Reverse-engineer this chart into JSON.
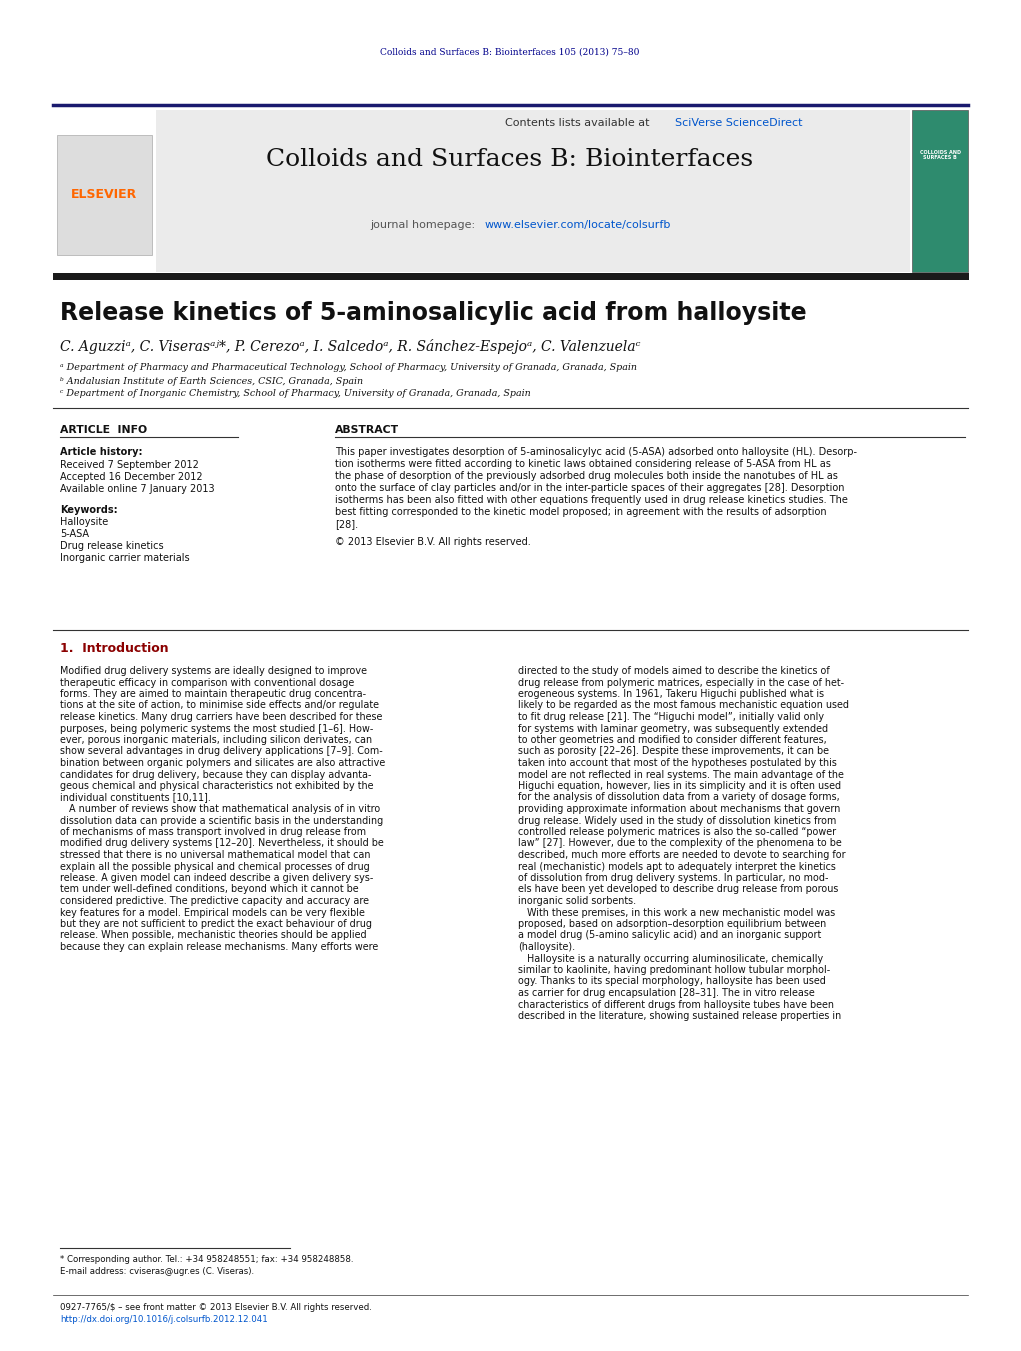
{
  "bg_color": "#ffffff",
  "header_journal_ref": "Colloids and Surfaces B: Biointerfaces 105 (2013) 75–80",
  "header_bg": "#e8e8f0",
  "journal_title": "Colloids and Surfaces B: Biointerfaces",
  "contents_line": "Contents lists available at ",
  "contents_link": "SciVerse ScienceDirect",
  "homepage_prefix": "journal homepage: ",
  "homepage_url": "www.elsevier.com/locate/colsurfb",
  "elsevier_color": "#FF6600",
  "article_title": "Release kinetics of 5-aminosalicylic acid from halloysite",
  "authors": "C. Aguzziᵃ, C. Viserasᵃʲ*, P. Cerezoᵃ, I. Salcedoᵃ, R. Sánchez-Espejoᵃ, C. Valenzuelaᶜ",
  "affil_a": "ᵃ Department of Pharmacy and Pharmaceutical Technology, School of Pharmacy, University of Granada, Granada, Spain",
  "affil_b": "ᵇ Andalusian Institute of Earth Sciences, CSIC, Granada, Spain",
  "affil_c": "ᶜ Department of Inorganic Chemistry, School of Pharmacy, University of Granada, Granada, Spain",
  "article_info_title": "ARTICLE  INFO",
  "abstract_title": "ABSTRACT",
  "article_history_label": "Article history:",
  "received": "Received 7 September 2012",
  "revised": "Accepted 16 December 2012",
  "available": "Available online 7 January 2013",
  "keywords_label": "Keywords:",
  "kw1": "Halloysite",
  "kw2": "5-ASA",
  "kw3": "Drug release kinetics",
  "kw4": "Inorganic carrier materials",
  "copyright_line": "© 2013 Elsevier B.V. All rights reserved.",
  "intro_title": "1.  Introduction",
  "footnote1": "* Corresponding author. Tel.: +34 958248551; fax: +34 958248858.",
  "footnote2": "E-mail address: cviseras@ugr.es (C. Viseras).",
  "footer1": "0927-7765/$ – see front matter © 2013 Elsevier B.V. All rights reserved.",
  "footer2": "http://dx.doi.org/10.1016/j.colsurfb.2012.12.041",
  "abstract_lines": [
    "This paper investigates desorption of 5-aminosalicylyc acid (5-ASA) adsorbed onto halloysite (HL). Desorp-",
    "tion isotherms were fitted according to kinetic laws obtained considering release of 5-ASA from HL as",
    "the phase of desorption of the previously adsorbed drug molecules both inside the nanotubes of HL as",
    "onto the surface of clay particles and/or in the inter-particle spaces of their aggregates [28]. Desorption",
    "isotherms has been also fitted with other equations frequently used in drug release kinetics studies. The",
    "best fitting corresponded to the kinetic model proposed; in agreement with the results of adsorption",
    "[28]."
  ],
  "col1_lines": [
    "Modified drug delivery systems are ideally designed to improve",
    "therapeutic efficacy in comparison with conventional dosage",
    "forms. They are aimed to maintain therapeutic drug concentra-",
    "tions at the site of action, to minimise side effects and/or regulate",
    "release kinetics. Many drug carriers have been described for these",
    "purposes, being polymeric systems the most studied [1–6]. How-",
    "ever, porous inorganic materials, including silicon derivates, can",
    "show several advantages in drug delivery applications [7–9]. Com-",
    "bination between organic polymers and silicates are also attractive",
    "candidates for drug delivery, because they can display advanta-",
    "geous chemical and physical characteristics not exhibited by the",
    "individual constituents [10,11].",
    "   A number of reviews show that mathematical analysis of in vitro",
    "dissolution data can provide a scientific basis in the understanding",
    "of mechanisms of mass transport involved in drug release from",
    "modified drug delivery systems [12–20]. Nevertheless, it should be",
    "stressed that there is no universal mathematical model that can",
    "explain all the possible physical and chemical processes of drug",
    "release. A given model can indeed describe a given delivery sys-",
    "tem under well-defined conditions, beyond which it cannot be",
    "considered predictive. The predictive capacity and accuracy are",
    "key features for a model. Empirical models can be very flexible",
    "but they are not sufficient to predict the exact behaviour of drug",
    "release. When possible, mechanistic theories should be applied",
    "because they can explain release mechanisms. Many efforts were"
  ],
  "col2_lines": [
    "directed to the study of models aimed to describe the kinetics of",
    "drug release from polymeric matrices, especially in the case of het-",
    "erogeneous systems. In 1961, Takeru Higuchi published what is",
    "likely to be regarded as the most famous mechanistic equation used",
    "to fit drug release [21]. The “Higuchi model”, initially valid only",
    "for systems with laminar geometry, was subsequently extended",
    "to other geometries and modified to consider different features,",
    "such as porosity [22–26]. Despite these improvements, it can be",
    "taken into account that most of the hypotheses postulated by this",
    "model are not reflected in real systems. The main advantage of the",
    "Higuchi equation, however, lies in its simplicity and it is often used",
    "for the analysis of dissolution data from a variety of dosage forms,",
    "providing approximate information about mechanisms that govern",
    "drug release. Widely used in the study of dissolution kinetics from",
    "controlled release polymeric matrices is also the so-called “power",
    "law” [27]. However, due to the complexity of the phenomena to be",
    "described, much more efforts are needed to devote to searching for",
    "real (mechanistic) models apt to adequately interpret the kinetics",
    "of dissolution from drug delivery systems. In particular, no mod-",
    "els have been yet developed to describe drug release from porous",
    "inorganic solid sorbents.",
    "   With these premises, in this work a new mechanistic model was",
    "proposed, based on adsorption–desorption equilibrium between",
    "a model drug (5-amino salicylic acid) and an inorganic support",
    "(halloysite).",
    "   Halloysite is a naturally occurring aluminosilicate, chemically",
    "similar to kaolinite, having predominant hollow tubular morphol-",
    "ogy. Thanks to its special morphology, halloysite has been used",
    "as carrier for drug encapsulation [28–31]. The in vitro release",
    "characteristics of different drugs from halloysite tubes have been",
    "described in the literature, showing sustained release properties in"
  ]
}
